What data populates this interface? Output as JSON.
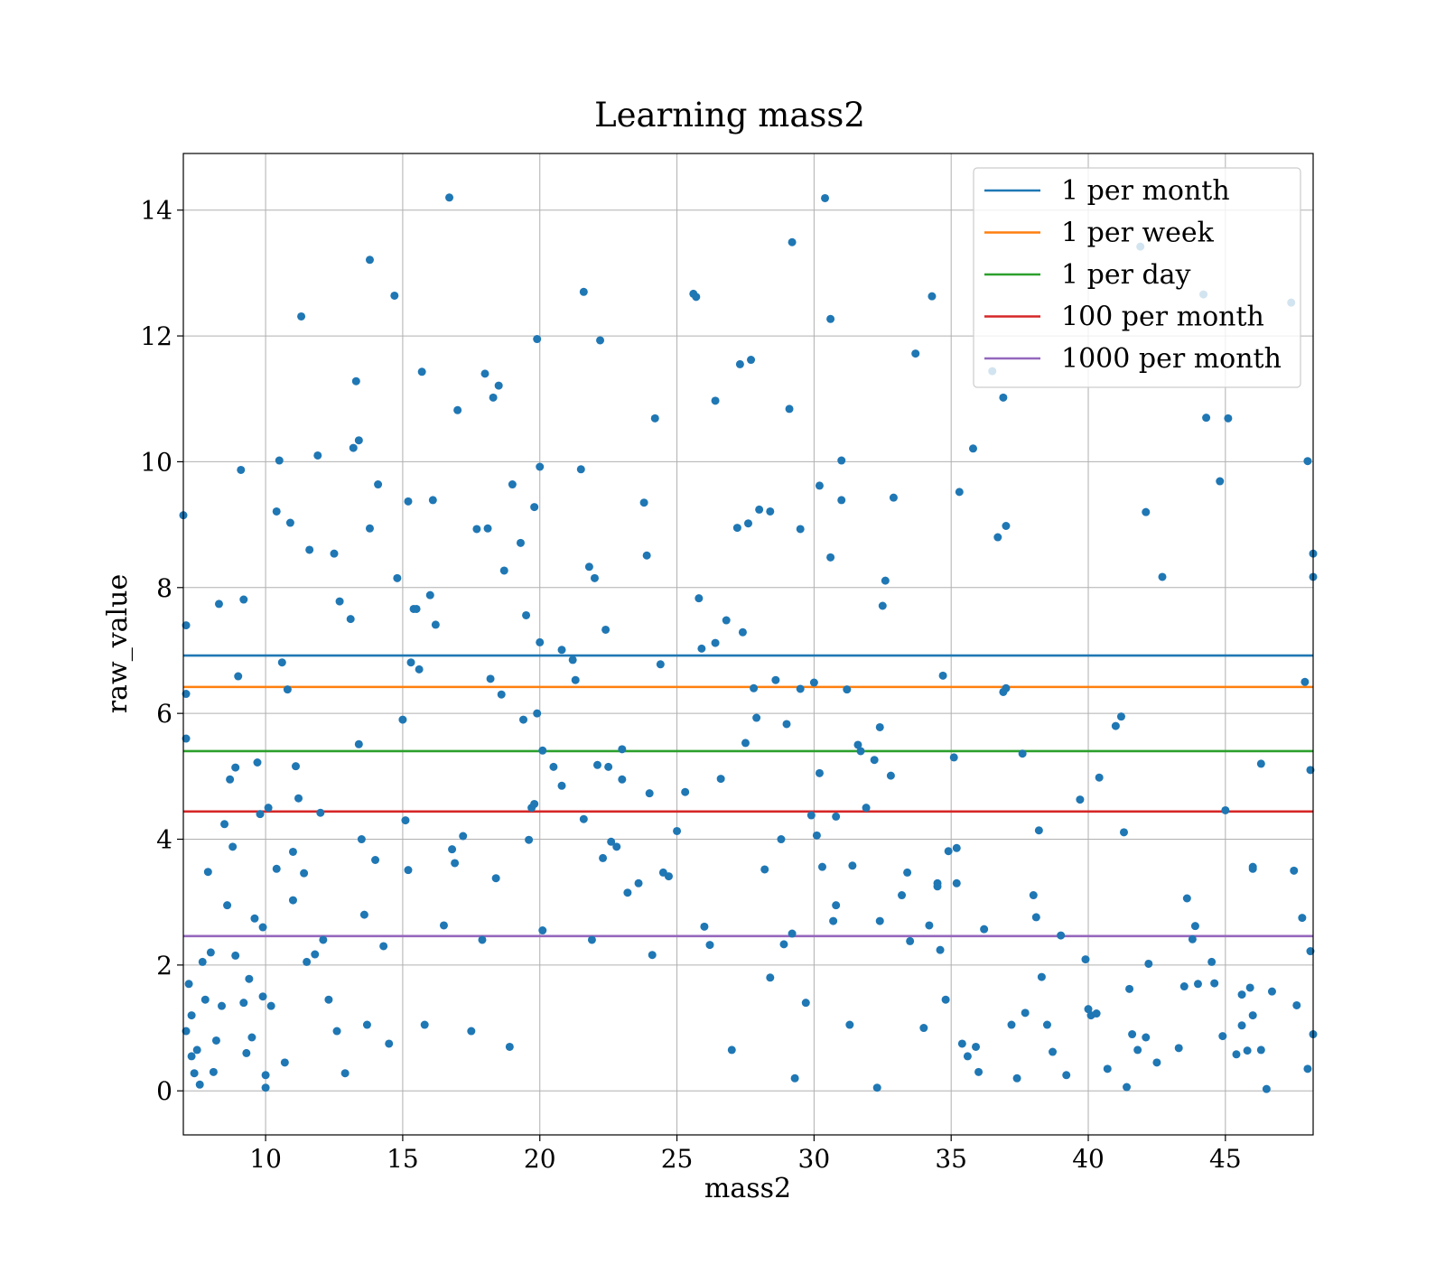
{
  "chart_data": {
    "type": "scatter",
    "title": "Learning mass2",
    "xlabel": "mass2",
    "ylabel": "raw_value",
    "xlim": [
      7,
      48.2
    ],
    "ylim": [
      -0.7,
      14.9
    ],
    "xticks": [
      10,
      15,
      20,
      25,
      30,
      35,
      40,
      45
    ],
    "yticks": [
      0,
      2,
      4,
      6,
      8,
      10,
      12,
      14
    ],
    "grid": true,
    "legend_position": "top-right",
    "marker_color": "#1f77b4",
    "thresholds": [
      {
        "name": "1 per month",
        "value": 6.92,
        "color": "#1f77b4"
      },
      {
        "name": "1 per week",
        "value": 6.42,
        "color": "#ff7f0e"
      },
      {
        "name": "1 per day",
        "value": 5.4,
        "color": "#2ca02c"
      },
      {
        "name": "100 per month",
        "value": 4.44,
        "color": "#d62728"
      },
      {
        "name": "1000 per month",
        "value": 2.46,
        "color": "#9467bd"
      }
    ],
    "points": [
      [
        7.0,
        9.15
      ],
      [
        7.1,
        7.4
      ],
      [
        7.1,
        6.31
      ],
      [
        7.1,
        5.6
      ],
      [
        7.2,
        1.7
      ],
      [
        7.3,
        1.2
      ],
      [
        7.3,
        0.55
      ],
      [
        7.1,
        0.95
      ],
      [
        7.4,
        0.28
      ],
      [
        7.5,
        0.65
      ],
      [
        7.6,
        0.1
      ],
      [
        7.7,
        2.05
      ],
      [
        7.8,
        1.45
      ],
      [
        7.9,
        3.48
      ],
      [
        8.0,
        2.2
      ],
      [
        8.1,
        0.3
      ],
      [
        8.2,
        0.8
      ],
      [
        8.3,
        7.74
      ],
      [
        8.4,
        1.35
      ],
      [
        8.5,
        4.24
      ],
      [
        8.6,
        2.95
      ],
      [
        8.7,
        4.95
      ],
      [
        8.8,
        3.88
      ],
      [
        8.9,
        2.15
      ],
      [
        8.9,
        5.14
      ],
      [
        9.0,
        6.59
      ],
      [
        9.1,
        9.87
      ],
      [
        9.2,
        1.4
      ],
      [
        9.2,
        7.81
      ],
      [
        9.3,
        0.6
      ],
      [
        9.4,
        1.78
      ],
      [
        9.5,
        0.85
      ],
      [
        9.6,
        2.74
      ],
      [
        9.7,
        5.22
      ],
      [
        9.8,
        4.4
      ],
      [
        9.9,
        2.6
      ],
      [
        9.9,
        1.5
      ],
      [
        10.0,
        0.25
      ],
      [
        10.0,
        0.05
      ],
      [
        10.1,
        4.5
      ],
      [
        10.2,
        1.35
      ],
      [
        10.4,
        9.21
      ],
      [
        10.4,
        3.53
      ],
      [
        10.5,
        10.02
      ],
      [
        10.6,
        6.81
      ],
      [
        10.7,
        0.45
      ],
      [
        10.8,
        6.38
      ],
      [
        10.9,
        9.03
      ],
      [
        11.0,
        3.8
      ],
      [
        11.0,
        3.03
      ],
      [
        11.1,
        5.16
      ],
      [
        11.2,
        4.65
      ],
      [
        11.3,
        12.31
      ],
      [
        11.4,
        3.46
      ],
      [
        11.5,
        2.05
      ],
      [
        11.6,
        8.6
      ],
      [
        11.8,
        2.17
      ],
      [
        11.9,
        10.1
      ],
      [
        12.0,
        4.42
      ],
      [
        12.1,
        2.4
      ],
      [
        12.3,
        1.45
      ],
      [
        12.5,
        8.54
      ],
      [
        12.6,
        0.95
      ],
      [
        12.7,
        7.78
      ],
      [
        12.9,
        0.28
      ],
      [
        13.1,
        7.5
      ],
      [
        13.2,
        10.22
      ],
      [
        13.3,
        11.28
      ],
      [
        13.4,
        10.34
      ],
      [
        13.4,
        5.51
      ],
      [
        13.5,
        4.0
      ],
      [
        13.6,
        2.8
      ],
      [
        13.7,
        1.05
      ],
      [
        13.8,
        13.21
      ],
      [
        13.8,
        8.94
      ],
      [
        14.0,
        3.67
      ],
      [
        14.1,
        9.64
      ],
      [
        14.3,
        2.3
      ],
      [
        14.5,
        0.75
      ],
      [
        14.7,
        12.64
      ],
      [
        14.8,
        8.15
      ],
      [
        15.0,
        5.9
      ],
      [
        15.1,
        4.3
      ],
      [
        15.2,
        9.37
      ],
      [
        15.2,
        3.51
      ],
      [
        15.3,
        6.81
      ],
      [
        15.4,
        7.66
      ],
      [
        15.5,
        7.66
      ],
      [
        15.6,
        6.7
      ],
      [
        15.7,
        11.43
      ],
      [
        15.8,
        1.05
      ],
      [
        16.0,
        7.88
      ],
      [
        16.1,
        9.39
      ],
      [
        16.2,
        7.41
      ],
      [
        16.5,
        2.63
      ],
      [
        16.7,
        14.2
      ],
      [
        16.8,
        3.84
      ],
      [
        16.9,
        3.62
      ],
      [
        17.0,
        10.82
      ],
      [
        17.2,
        4.05
      ],
      [
        17.5,
        0.95
      ],
      [
        17.7,
        8.93
      ],
      [
        17.9,
        2.4
      ],
      [
        18.0,
        11.4
      ],
      [
        18.1,
        8.94
      ],
      [
        18.2,
        6.55
      ],
      [
        18.3,
        11.02
      ],
      [
        18.4,
        3.38
      ],
      [
        18.5,
        11.21
      ],
      [
        18.6,
        6.3
      ],
      [
        18.7,
        8.27
      ],
      [
        18.9,
        0.7
      ],
      [
        19.0,
        9.64
      ],
      [
        19.3,
        8.71
      ],
      [
        19.4,
        5.9
      ],
      [
        19.5,
        7.56
      ],
      [
        19.6,
        3.99
      ],
      [
        19.7,
        4.5
      ],
      [
        19.8,
        9.28
      ],
      [
        19.8,
        4.56
      ],
      [
        19.9,
        11.95
      ],
      [
        19.9,
        6.0
      ],
      [
        20.0,
        9.92
      ],
      [
        20.0,
        7.13
      ],
      [
        20.1,
        5.41
      ],
      [
        20.1,
        2.55
      ],
      [
        20.5,
        5.15
      ],
      [
        20.8,
        7.01
      ],
      [
        20.8,
        4.85
      ],
      [
        21.2,
        6.85
      ],
      [
        21.3,
        6.53
      ],
      [
        21.5,
        9.88
      ],
      [
        21.6,
        12.7
      ],
      [
        21.6,
        4.32
      ],
      [
        21.8,
        8.33
      ],
      [
        21.9,
        2.4
      ],
      [
        22.0,
        8.15
      ],
      [
        22.1,
        5.18
      ],
      [
        22.2,
        11.93
      ],
      [
        22.3,
        3.7
      ],
      [
        22.4,
        7.33
      ],
      [
        22.5,
        5.15
      ],
      [
        22.6,
        3.96
      ],
      [
        22.8,
        3.88
      ],
      [
        23.0,
        5.43
      ],
      [
        23.0,
        4.95
      ],
      [
        23.2,
        3.15
      ],
      [
        23.6,
        3.3
      ],
      [
        23.8,
        9.35
      ],
      [
        23.9,
        8.51
      ],
      [
        24.0,
        4.73
      ],
      [
        24.1,
        2.16
      ],
      [
        24.2,
        10.69
      ],
      [
        24.4,
        6.78
      ],
      [
        24.5,
        3.47
      ],
      [
        24.7,
        3.41
      ],
      [
        25.0,
        4.13
      ],
      [
        25.3,
        4.75
      ],
      [
        25.6,
        12.67
      ],
      [
        25.7,
        12.62
      ],
      [
        25.8,
        7.83
      ],
      [
        25.9,
        7.03
      ],
      [
        26.0,
        2.61
      ],
      [
        26.2,
        2.32
      ],
      [
        26.4,
        7.12
      ],
      [
        26.4,
        10.97
      ],
      [
        26.6,
        4.96
      ],
      [
        26.8,
        7.48
      ],
      [
        27.0,
        0.65
      ],
      [
        27.2,
        8.95
      ],
      [
        27.3,
        11.55
      ],
      [
        27.4,
        7.29
      ],
      [
        27.5,
        5.53
      ],
      [
        27.6,
        9.02
      ],
      [
        27.7,
        11.62
      ],
      [
        27.8,
        6.4
      ],
      [
        27.9,
        5.93
      ],
      [
        28.0,
        9.24
      ],
      [
        28.2,
        3.52
      ],
      [
        28.4,
        9.21
      ],
      [
        28.4,
        1.8
      ],
      [
        28.6,
        6.53
      ],
      [
        28.8,
        4.0
      ],
      [
        28.9,
        2.33
      ],
      [
        29.0,
        5.83
      ],
      [
        29.1,
        10.84
      ],
      [
        29.2,
        13.49
      ],
      [
        29.2,
        2.5
      ],
      [
        29.3,
        0.2
      ],
      [
        29.5,
        8.93
      ],
      [
        29.5,
        6.39
      ],
      [
        29.7,
        1.4
      ],
      [
        29.9,
        4.38
      ],
      [
        30.0,
        6.49
      ],
      [
        30.1,
        4.06
      ],
      [
        30.2,
        5.05
      ],
      [
        30.2,
        9.62
      ],
      [
        30.3,
        3.56
      ],
      [
        30.4,
        14.19
      ],
      [
        30.6,
        12.27
      ],
      [
        30.6,
        8.48
      ],
      [
        30.7,
        2.7
      ],
      [
        30.8,
        4.36
      ],
      [
        30.8,
        2.95
      ],
      [
        31.0,
        10.02
      ],
      [
        31.0,
        9.39
      ],
      [
        31.2,
        6.38
      ],
      [
        31.3,
        1.05
      ],
      [
        31.4,
        3.58
      ],
      [
        31.6,
        5.5
      ],
      [
        31.7,
        5.4
      ],
      [
        31.9,
        4.5
      ],
      [
        32.2,
        5.26
      ],
      [
        32.3,
        0.05
      ],
      [
        32.4,
        5.78
      ],
      [
        32.4,
        2.7
      ],
      [
        32.5,
        7.71
      ],
      [
        32.6,
        8.11
      ],
      [
        32.8,
        5.01
      ],
      [
        32.9,
        9.43
      ],
      [
        33.2,
        3.11
      ],
      [
        33.4,
        3.47
      ],
      [
        33.5,
        2.38
      ],
      [
        33.7,
        11.72
      ],
      [
        34.0,
        1.0
      ],
      [
        34.2,
        2.63
      ],
      [
        34.3,
        12.63
      ],
      [
        34.5,
        3.3
      ],
      [
        34.5,
        3.25
      ],
      [
        34.6,
        2.24
      ],
      [
        34.7,
        6.6
      ],
      [
        34.8,
        1.45
      ],
      [
        34.9,
        3.81
      ],
      [
        35.1,
        5.3
      ],
      [
        35.2,
        3.86
      ],
      [
        35.2,
        3.3
      ],
      [
        35.3,
        9.52
      ],
      [
        35.4,
        0.75
      ],
      [
        35.6,
        0.55
      ],
      [
        35.8,
        10.21
      ],
      [
        35.9,
        0.7
      ],
      [
        36.0,
        0.3
      ],
      [
        36.2,
        2.57
      ],
      [
        36.5,
        11.44
      ],
      [
        36.7,
        8.8
      ],
      [
        36.9,
        6.34
      ],
      [
        36.9,
        11.02
      ],
      [
        37.0,
        6.4
      ],
      [
        37.0,
        8.98
      ],
      [
        37.2,
        1.05
      ],
      [
        37.4,
        0.2
      ],
      [
        37.6,
        5.36
      ],
      [
        37.7,
        1.24
      ],
      [
        38.0,
        3.11
      ],
      [
        38.1,
        2.76
      ],
      [
        38.2,
        4.14
      ],
      [
        38.3,
        1.81
      ],
      [
        38.5,
        1.05
      ],
      [
        38.7,
        0.62
      ],
      [
        39.0,
        2.47
      ],
      [
        39.2,
        0.25
      ],
      [
        39.7,
        4.63
      ],
      [
        39.9,
        2.09
      ],
      [
        40.0,
        1.3
      ],
      [
        40.1,
        1.2
      ],
      [
        40.3,
        1.23
      ],
      [
        40.4,
        4.98
      ],
      [
        40.7,
        0.35
      ],
      [
        41.0,
        5.8
      ],
      [
        41.2,
        5.95
      ],
      [
        41.3,
        4.11
      ],
      [
        41.4,
        0.06
      ],
      [
        41.5,
        1.62
      ],
      [
        41.6,
        0.9
      ],
      [
        41.8,
        0.65
      ],
      [
        41.9,
        13.42
      ],
      [
        42.1,
        0.85
      ],
      [
        42.1,
        9.2
      ],
      [
        42.2,
        2.02
      ],
      [
        42.5,
        0.45
      ],
      [
        42.7,
        8.17
      ],
      [
        43.3,
        0.68
      ],
      [
        43.5,
        1.66
      ],
      [
        43.6,
        3.06
      ],
      [
        43.8,
        2.41
      ],
      [
        43.9,
        2.62
      ],
      [
        44.0,
        1.7
      ],
      [
        44.2,
        12.66
      ],
      [
        44.3,
        10.7
      ],
      [
        44.5,
        2.05
      ],
      [
        44.6,
        1.71
      ],
      [
        44.8,
        9.69
      ],
      [
        44.9,
        0.87
      ],
      [
        45.0,
        4.46
      ],
      [
        45.1,
        10.69
      ],
      [
        45.4,
        0.58
      ],
      [
        45.6,
        1.04
      ],
      [
        45.6,
        1.53
      ],
      [
        45.8,
        0.64
      ],
      [
        45.9,
        1.64
      ],
      [
        46.0,
        1.2
      ],
      [
        46.0,
        3.56
      ],
      [
        46.0,
        3.53
      ],
      [
        46.3,
        5.2
      ],
      [
        46.3,
        0.65
      ],
      [
        46.5,
        0.03
      ],
      [
        46.7,
        1.58
      ],
      [
        47.4,
        12.53
      ],
      [
        47.5,
        3.5
      ],
      [
        47.6,
        1.36
      ],
      [
        47.8,
        2.75
      ],
      [
        47.9,
        6.5
      ],
      [
        48.0,
        10.01
      ],
      [
        48.1,
        2.22
      ],
      [
        48.2,
        8.54
      ],
      [
        48.2,
        0.9
      ],
      [
        48.0,
        0.35
      ],
      [
        48.1,
        5.1
      ],
      [
        48.2,
        8.17
      ]
    ]
  }
}
